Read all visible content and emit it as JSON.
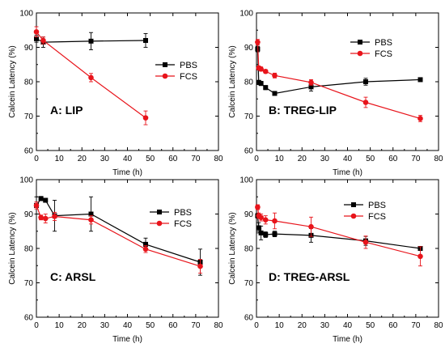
{
  "chart_data": [
    {
      "type": "line",
      "panel_label": "A:  LIP",
      "xlabel": "Time (h)",
      "ylabel": "Calcein Latency (%)",
      "xlim": [
        0,
        80
      ],
      "ylim": [
        60,
        100
      ],
      "xticks": [
        "0",
        "10",
        "20",
        "30",
        "40",
        "50",
        "60",
        "70",
        "80"
      ],
      "yticks": [
        "60",
        "70",
        "80",
        "90",
        "100"
      ],
      "legend_position": "right",
      "series": [
        {
          "name": "PBS",
          "color": "#000000",
          "marker": "square",
          "x": [
            0,
            3,
            24,
            48
          ],
          "y": [
            92.5,
            91.5,
            91.8,
            92.0
          ],
          "err": [
            1.0,
            1.5,
            2.5,
            2.0
          ]
        },
        {
          "name": "FCS",
          "color": "#e8141b",
          "marker": "circle",
          "x": [
            0,
            3,
            24,
            48
          ],
          "y": [
            94.5,
            92.0,
            81.2,
            69.5
          ],
          "err": [
            1.5,
            1.0,
            1.2,
            2.0
          ]
        }
      ]
    },
    {
      "type": "line",
      "panel_label": "B:  TREG-LIP",
      "xlabel": "Time (h)",
      "ylabel": "Calcein Latency (%)",
      "xlim": [
        0,
        80
      ],
      "ylim": [
        60,
        100
      ],
      "xticks": [
        "0",
        "10",
        "20",
        "30",
        "40",
        "50",
        "60",
        "70",
        "80"
      ],
      "yticks": [
        "60",
        "70",
        "80",
        "90",
        "100"
      ],
      "legend_position": "top-right",
      "series": [
        {
          "name": "PBS",
          "color": "#000000",
          "marker": "square",
          "x": [
            0.5,
            1,
            2,
            4,
            8,
            24,
            48,
            72
          ],
          "y": [
            89.5,
            79.8,
            79.5,
            78.3,
            76.6,
            78.5,
            80.0,
            80.6
          ],
          "err": [
            0.8,
            0.6,
            0.6,
            0.6,
            0.5,
            1.2,
            1.0,
            0.4
          ]
        },
        {
          "name": "FCS",
          "color": "#e8141b",
          "marker": "circle",
          "x": [
            0.5,
            1,
            2,
            4,
            8,
            24,
            48,
            72
          ],
          "y": [
            91.5,
            84.0,
            83.7,
            83.0,
            81.8,
            79.8,
            74.0,
            69.3
          ],
          "err": [
            0.8,
            0.6,
            0.6,
            0.5,
            0.7,
            0.8,
            1.5,
            0.9
          ]
        }
      ]
    },
    {
      "type": "line",
      "panel_label": "C:  ARSL",
      "xlabel": "Time (h)",
      "ylabel": "Calcein Latency (%)",
      "xlim": [
        0,
        80
      ],
      "ylim": [
        60,
        100
      ],
      "xticks": [
        "0",
        "10",
        "20",
        "30",
        "40",
        "50",
        "60",
        "70",
        "80"
      ],
      "yticks": [
        "60",
        "70",
        "80",
        "90",
        "100"
      ],
      "legend_position": "top-right",
      "series": [
        {
          "name": "PBS",
          "color": "#000000",
          "marker": "square",
          "x": [
            0,
            2,
            4,
            8,
            24,
            48,
            72
          ],
          "y": [
            92.5,
            94.5,
            94.0,
            89.5,
            90.0,
            81.2,
            76.0
          ],
          "err": [
            2.5,
            0.6,
            0.6,
            4.5,
            5.0,
            1.8,
            3.8
          ]
        },
        {
          "name": "FCS",
          "color": "#e8141b",
          "marker": "circle",
          "x": [
            0,
            2,
            4,
            8,
            24,
            48,
            72
          ],
          "y": [
            92.5,
            89.0,
            88.7,
            89.3,
            88.3,
            79.8,
            74.8
          ],
          "err": [
            1.0,
            0.7,
            1.3,
            1.2,
            1.2,
            1.0,
            2.0
          ]
        }
      ]
    },
    {
      "type": "line",
      "panel_label": "D:  TREG-ARSL",
      "xlabel": "Time (h)",
      "ylabel": "Calcein Latency (%)",
      "xlim": [
        0,
        80
      ],
      "ylim": [
        60,
        100
      ],
      "xticks": [
        "0",
        "10",
        "20",
        "30",
        "40",
        "50",
        "60",
        "70",
        "80"
      ],
      "yticks": [
        "60",
        "70",
        "80",
        "90",
        "100"
      ],
      "legend_position": "top-right",
      "series": [
        {
          "name": "PBS",
          "color": "#000000",
          "marker": "square",
          "x": [
            0.5,
            1,
            2,
            4,
            8,
            24,
            48,
            72
          ],
          "y": [
            89.5,
            86.0,
            84.5,
            84.0,
            84.2,
            83.8,
            82.2,
            80.0
          ],
          "err": [
            0.6,
            1.5,
            2.0,
            0.8,
            0.8,
            2.0,
            1.3,
            0.6
          ]
        },
        {
          "name": "FCS",
          "color": "#e8141b",
          "marker": "circle",
          "x": [
            0.5,
            1,
            2,
            4,
            8,
            24,
            48,
            72
          ],
          "y": [
            92.0,
            89.5,
            89.0,
            88.3,
            88.0,
            86.3,
            81.8,
            77.7
          ],
          "err": [
            0.7,
            0.8,
            1.0,
            1.2,
            2.3,
            2.8,
            1.8,
            2.8
          ]
        }
      ]
    }
  ]
}
